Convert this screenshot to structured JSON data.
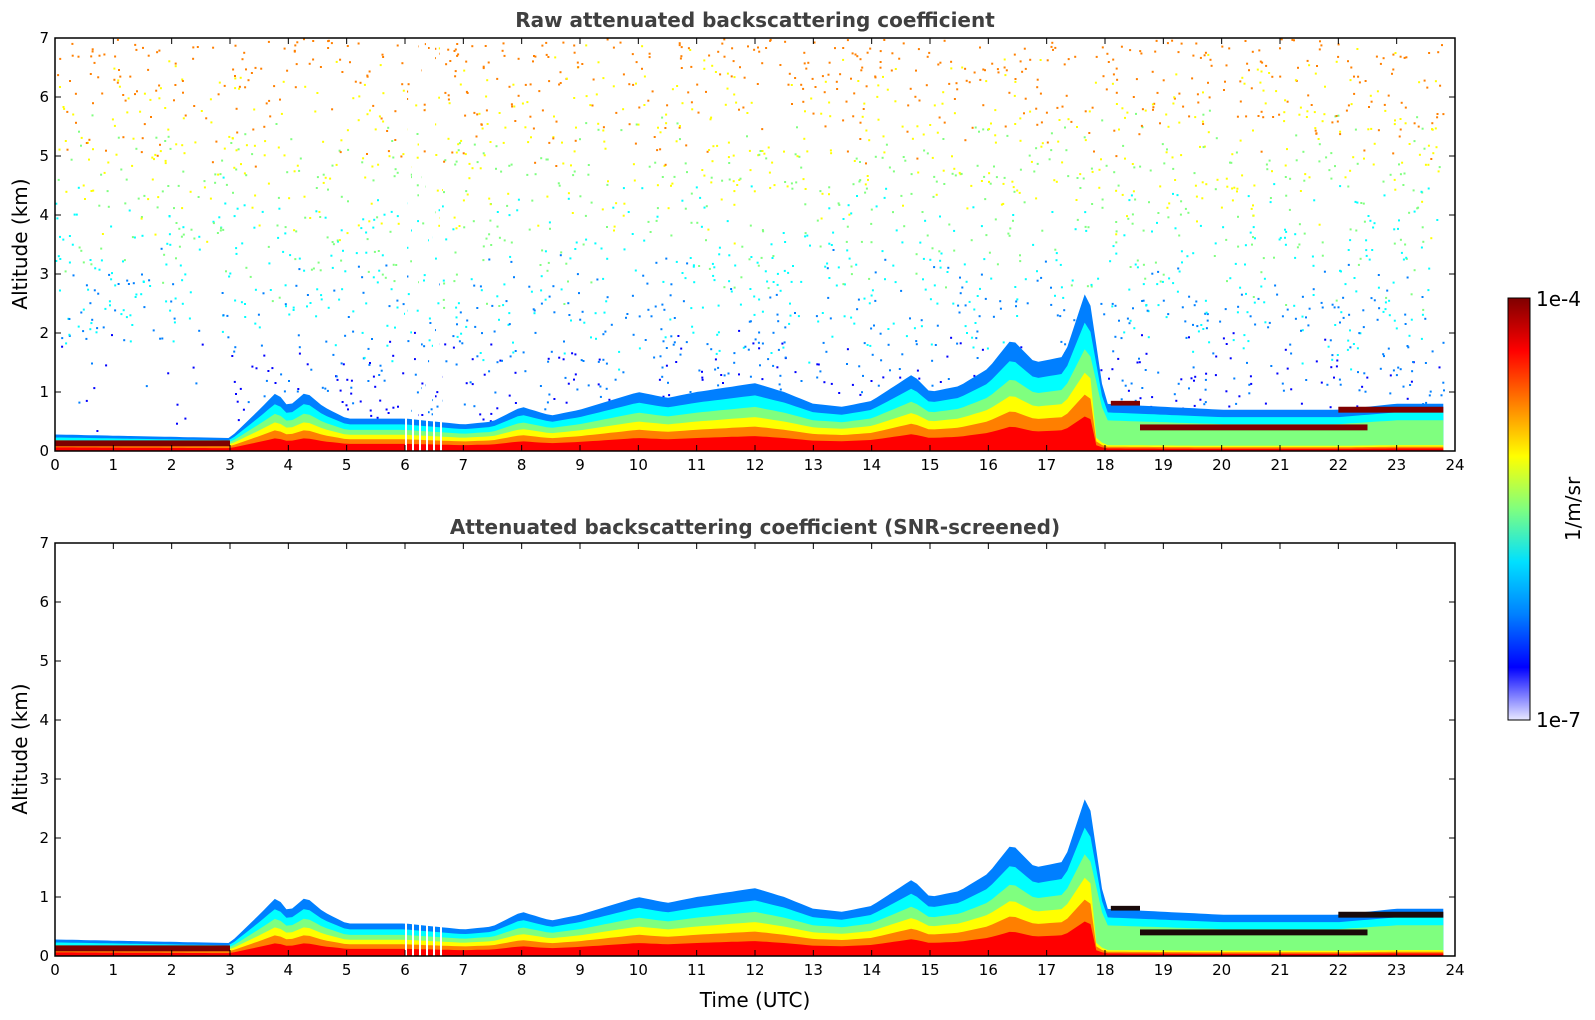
{
  "chart_data": [
    {
      "type": "heatmap",
      "title": "Raw attenuated backscattering coefficient",
      "xlabel": "",
      "ylabel": "Altitude (km)",
      "xlim": [
        0,
        24
      ],
      "ylim": [
        0,
        7
      ],
      "xticks": [
        "0",
        "1",
        "2",
        "3",
        "4",
        "5",
        "6",
        "7",
        "8",
        "9",
        "10",
        "11",
        "12",
        "13",
        "14",
        "15",
        "16",
        "17",
        "18",
        "19",
        "20",
        "21",
        "22",
        "23",
        "24"
      ],
      "yticks": [
        "0",
        "1",
        "2",
        "3",
        "4",
        "5",
        "6",
        "7"
      ],
      "aerosol_layer_top_km": {
        "time_utc": [
          0,
          1,
          2,
          3,
          3.5,
          3.8,
          4.0,
          4.3,
          4.6,
          5,
          6,
          7,
          7.5,
          8,
          8.5,
          9,
          10,
          10.5,
          11,
          12,
          12.5,
          13,
          13.5,
          14,
          14.7,
          15,
          15.5,
          16,
          16.4,
          16.8,
          17.3,
          17.7,
          18,
          19,
          20,
          21,
          22,
          23,
          23.8
        ],
        "top_km": [
          0.28,
          0.26,
          0.24,
          0.22,
          0.7,
          1.0,
          0.75,
          1.0,
          0.75,
          0.55,
          0.55,
          0.45,
          0.5,
          0.75,
          0.6,
          0.7,
          1.0,
          0.9,
          1.0,
          1.15,
          1.0,
          0.8,
          0.75,
          0.85,
          1.3,
          1.0,
          1.1,
          1.4,
          1.9,
          1.5,
          1.6,
          2.8,
          0.8,
          0.75,
          0.7,
          0.7,
          0.7,
          0.8,
          0.8
        ]
      },
      "noise_region_top_km": 7,
      "colorscale": "jet",
      "colorbar": {
        "min": "1e-7",
        "max": "1e-4",
        "label": "1/m/sr",
        "scale": "log"
      }
    },
    {
      "type": "heatmap",
      "title": "Attenuated backscattering coefficient (SNR-screened)",
      "xlabel": "Time (UTC)",
      "ylabel": "Altitude (km)",
      "xlim": [
        0,
        24
      ],
      "ylim": [
        0,
        7
      ],
      "xticks": [
        "0",
        "1",
        "2",
        "3",
        "4",
        "5",
        "6",
        "7",
        "8",
        "9",
        "10",
        "11",
        "12",
        "13",
        "14",
        "15",
        "16",
        "17",
        "18",
        "19",
        "20",
        "21",
        "22",
        "23",
        "24"
      ],
      "yticks": [
        "0",
        "1",
        "2",
        "3",
        "4",
        "5",
        "6",
        "7"
      ],
      "noise_removed": true
    }
  ],
  "colors": {
    "jet": [
      "#00007f",
      "#0000ff",
      "#007fff",
      "#00ffff",
      "#7fff7f",
      "#ffff00",
      "#ff7f00",
      "#ff0000",
      "#7f0000"
    ],
    "title_text": "#404040"
  }
}
